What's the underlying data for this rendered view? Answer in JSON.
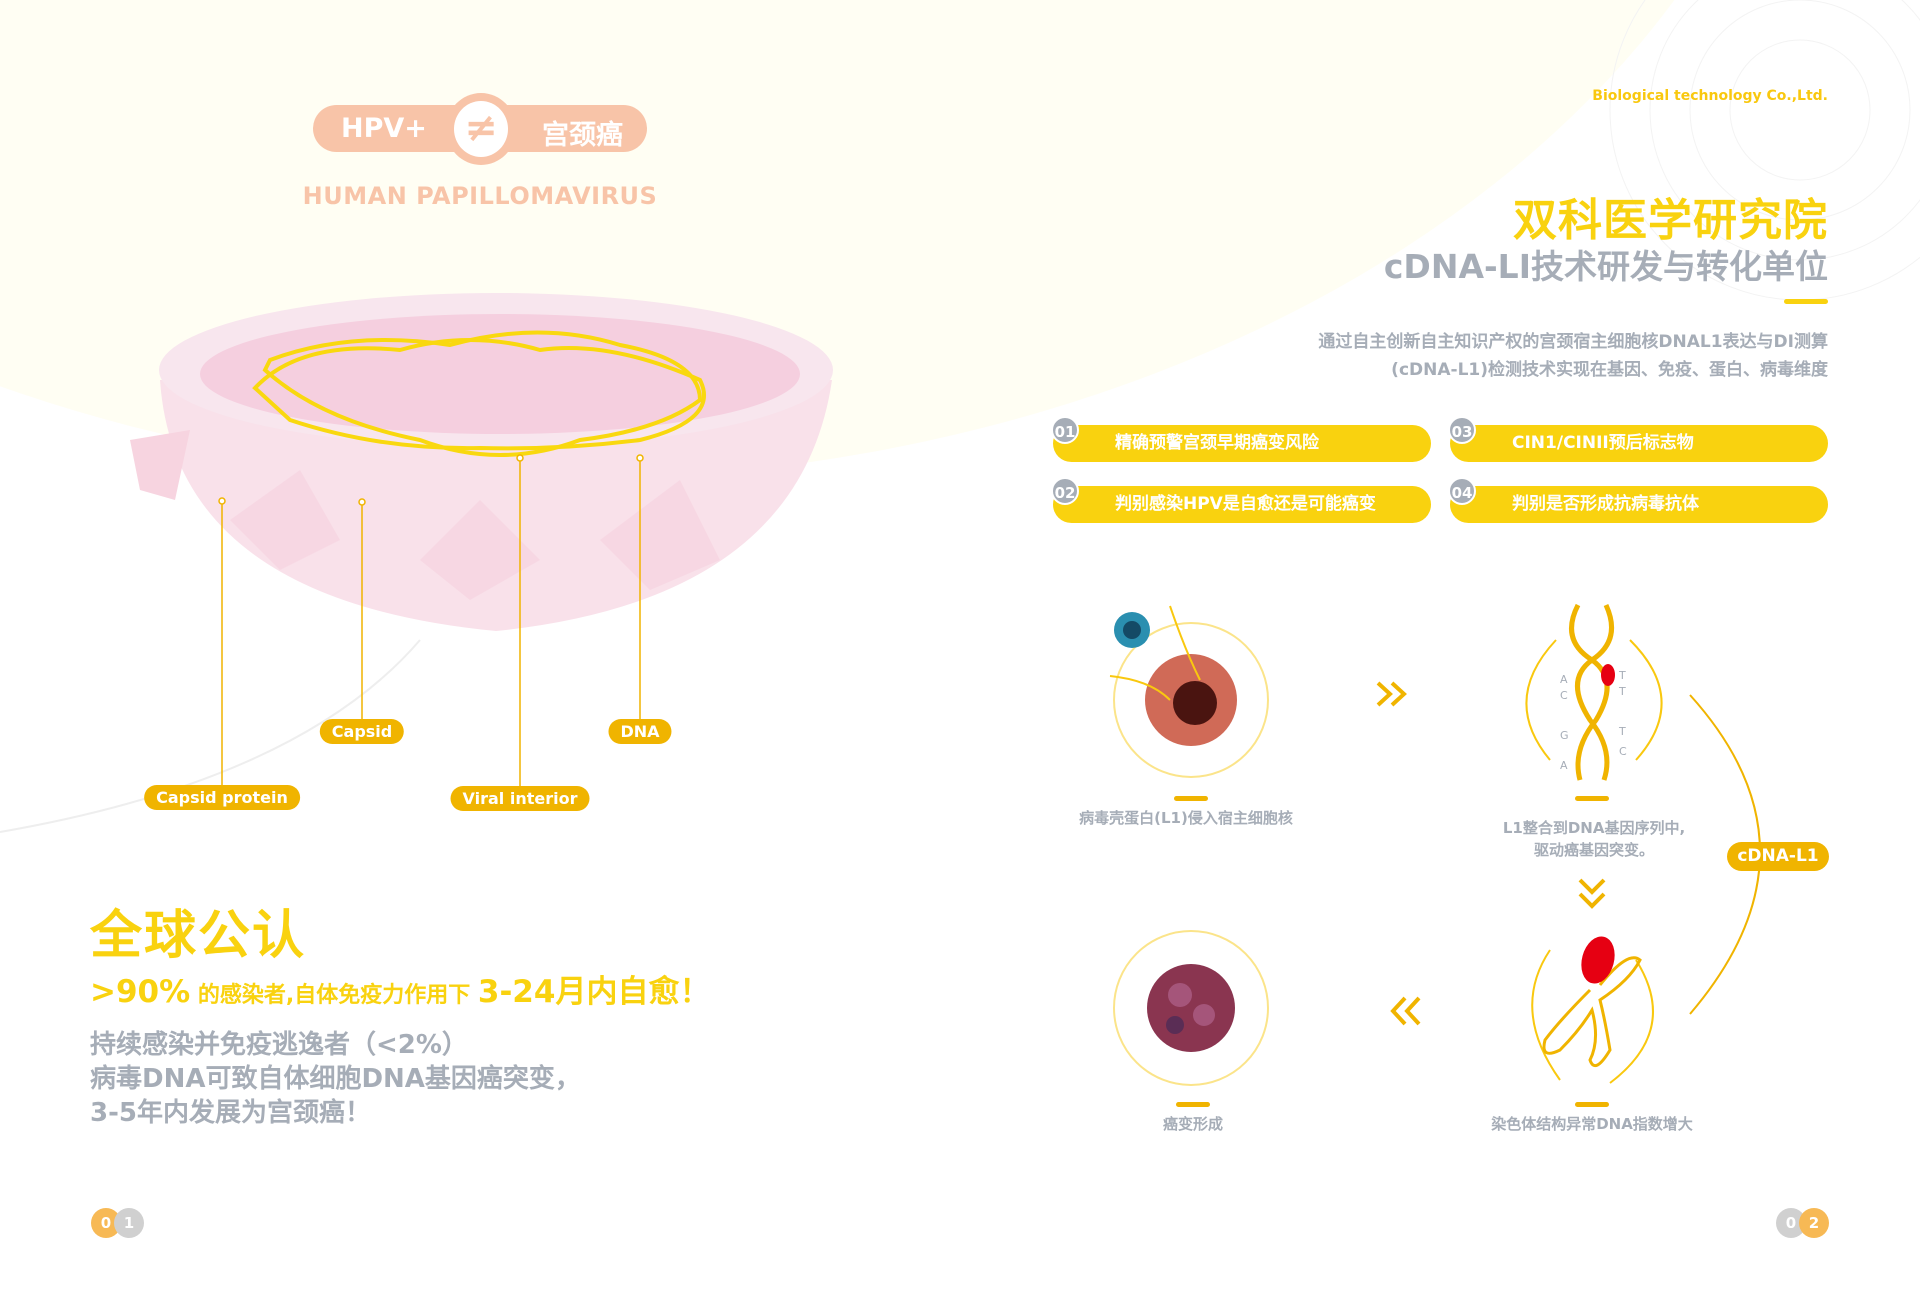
{
  "left_page": {
    "hpv_badge": {
      "left": "HPV+",
      "symbol": "≠",
      "right": "宫颈癌"
    },
    "subtitle": "HUMAN  PAPILLOMAVIRUS",
    "virus_labels": [
      "Capsid protein",
      "Capsid",
      "Viral interior",
      "DNA"
    ],
    "heading": "全球公认",
    "stat": {
      "pct": ">90%",
      "middle": " 的感染者,自体免疫力作用下 ",
      "period": "3-24月内自愈！"
    },
    "body_lines": [
      "持续感染并免疫逃逸者（<2%）",
      "病毒DNA可致自体细胞DNA基因癌突变，",
      "3-5年内发展为宫颈癌！"
    ],
    "page_number": [
      "0",
      "1"
    ]
  },
  "right_page": {
    "company": "Biological  technology Co.,Ltd.",
    "title": "双科医学研究院",
    "subtitle": "cDNA-LI技术研发与转化单位",
    "description": [
      "通过自主创新自主知识产权的宫颈宿主细胞核DNAL1表达与DI测算",
      "(cDNA-L1)检测技术实现在基因、免疫、蛋白、病毒维度"
    ],
    "features": [
      {
        "num": "01",
        "label": "精确预警宫颈早期癌变风险"
      },
      {
        "num": "02",
        "label": "判别感染HPV是自愈还是可能癌变"
      },
      {
        "num": "03",
        "label": "CIN1/CINII预后标志物"
      },
      {
        "num": "04",
        "label": "判别是否形成抗病毒抗体"
      }
    ],
    "process": [
      {
        "caption": "病毒壳蛋白(L1)侵入宿主细胞核"
      },
      {
        "caption": "L1整合到DNA基因序列中,\n驱动癌基因突变。",
        "bases_left": [
          "A",
          "C",
          "G",
          "A"
        ],
        "bases_right": [
          "T",
          "T",
          "T",
          "C"
        ]
      },
      {
        "caption": "染色体结构异常DNA指数增大"
      },
      {
        "caption": "癌变形成"
      }
    ],
    "cycle_label": "cDNA-L1",
    "page_number": [
      "0",
      "2"
    ]
  },
  "colors": {
    "yellow": "#f9d20f",
    "gold": "#f0b400",
    "peach": "#f8c4a8",
    "gray": "#a6adb7",
    "cream": "#fffef3"
  }
}
